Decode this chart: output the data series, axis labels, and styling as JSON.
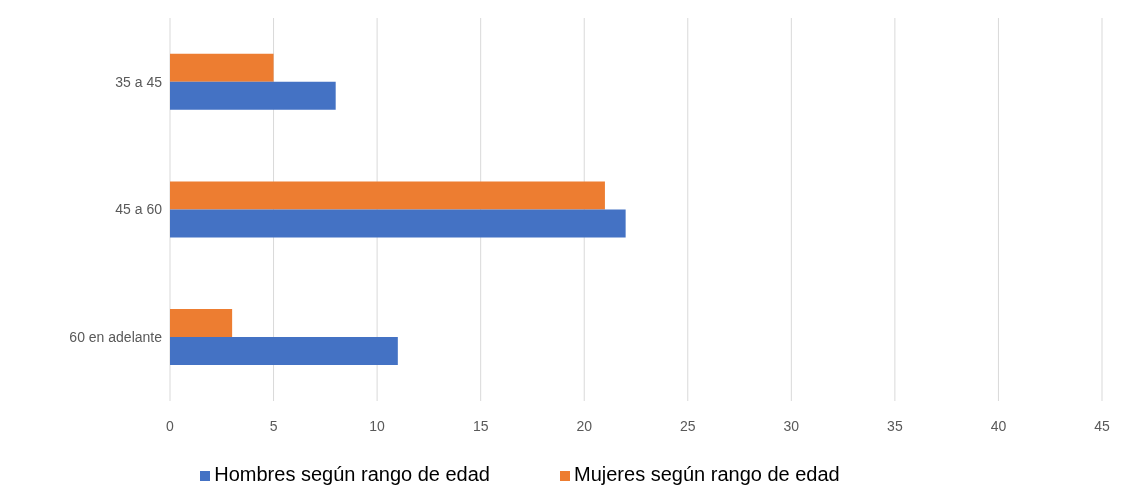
{
  "chart_data": {
    "type": "bar",
    "orientation": "horizontal",
    "categories": [
      "35 a 45",
      "45 a 60",
      "60 en adelante"
    ],
    "series": [
      {
        "name": "Mujeres según rango de edad",
        "color": "#ed7d31",
        "values": [
          5,
          21,
          3
        ]
      },
      {
        "name": "Hombres según rango de edad",
        "color": "#4472c4",
        "values": [
          8,
          22,
          11
        ]
      }
    ],
    "xlim": [
      0,
      45
    ],
    "xticks": [
      0,
      5,
      10,
      15,
      20,
      25,
      30,
      35,
      40,
      45
    ],
    "grid": "x",
    "legend": "bottom"
  }
}
